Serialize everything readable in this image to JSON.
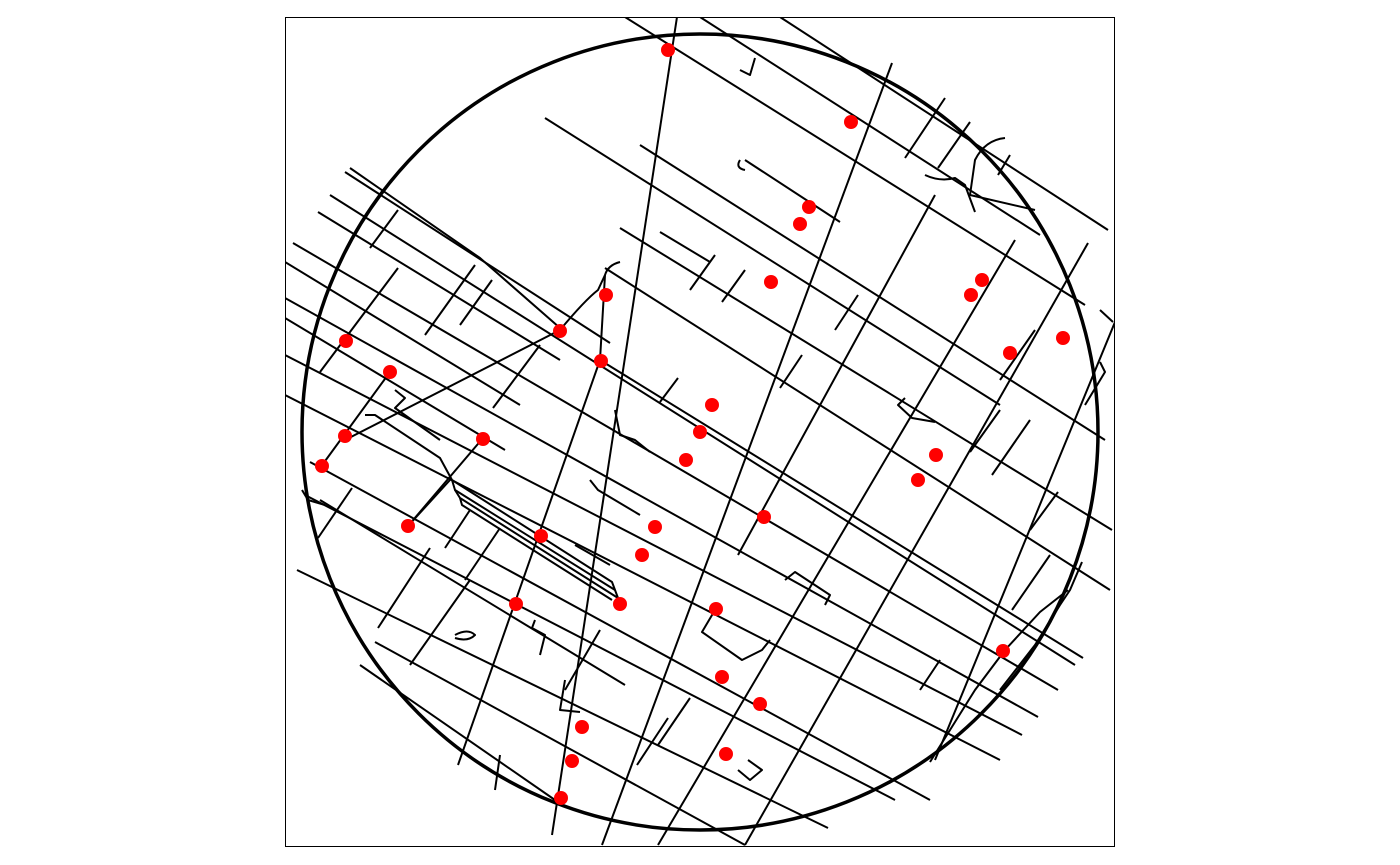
{
  "map": {
    "colors": {
      "background": "#ffffff",
      "frame": "#000000",
      "streets": "#000000",
      "buffer_circle": "#000000",
      "intersection_points": "#ff0000"
    },
    "layers": [
      "street-network",
      "buffer-circle",
      "intersection-points"
    ]
  }
}
